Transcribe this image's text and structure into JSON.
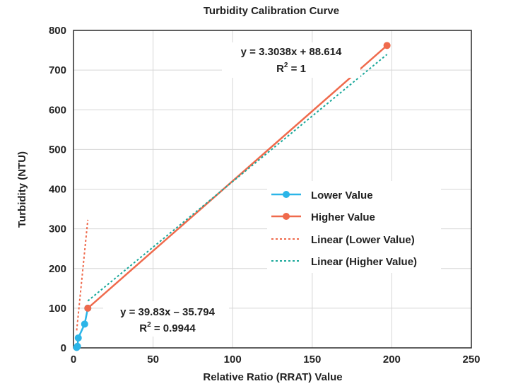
{
  "chart_data": {
    "type": "scatter",
    "title": "Turbidity Calibration Curve",
    "xlabel": "Relative Ratio (RRAT) Value",
    "ylabel": "Turbidity (NTU)",
    "xlim": [
      0,
      250
    ],
    "ylim": [
      0,
      800
    ],
    "xticks": [
      "0",
      "50",
      "100",
      "150",
      "200",
      "250"
    ],
    "yticks": [
      "0",
      "100",
      "200",
      "300",
      "400",
      "500",
      "600",
      "700",
      "800"
    ],
    "grid": true,
    "legend_position": "center-right",
    "series": [
      {
        "name": "Lower Value",
        "color": "#2BB5E8",
        "points": [
          [
            2,
            1
          ],
          [
            2.5,
            4
          ],
          [
            3,
            25
          ],
          [
            7,
            60
          ],
          [
            9,
            100
          ]
        ]
      },
      {
        "name": "Higher Value",
        "color": "#EF6A4C",
        "points": [
          [
            9,
            100
          ],
          [
            197,
            762
          ]
        ]
      }
    ],
    "trendlines": [
      {
        "name": "Linear (Lower Value)",
        "color": "#EF6A4C",
        "slope": 39.83,
        "intercept": -35.794
      },
      {
        "name": "Linear (Higher Value)",
        "color": "#1AA89A",
        "slope": 3.3038,
        "intercept": 88.614
      }
    ],
    "annotations": [
      {
        "equation": "y = 3.3038x + 88.614",
        "r2_label": "R",
        "r2_sup": "2",
        "r2_value": " = 1"
      },
      {
        "equation": "y = 39.83x – 35.794",
        "r2_label": "R",
        "r2_sup": "2",
        "r2_value": " = 0.9944"
      }
    ]
  }
}
